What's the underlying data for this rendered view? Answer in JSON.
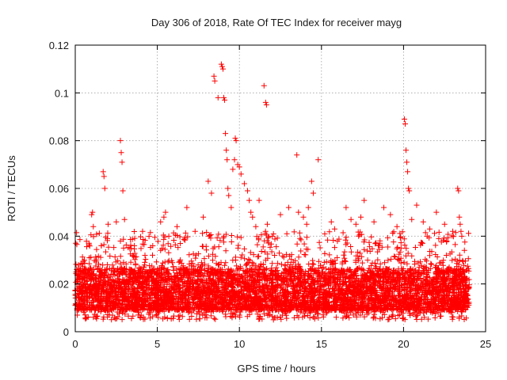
{
  "chart_data": {
    "type": "scatter",
    "title": "Day 306 of 2018, Rate Of TEC Index for receiver mayg",
    "xlabel": "GPS time / hours",
    "ylabel": "ROTI / TECUs",
    "xlim": [
      0,
      25
    ],
    "ylim": [
      0,
      0.12
    ],
    "x_ticks": [
      0,
      5,
      10,
      15,
      20,
      25
    ],
    "y_ticks": [
      0,
      0.02,
      0.04,
      0.06,
      0.08,
      0.1,
      0.12
    ],
    "x_tick_labels": [
      "0",
      "5",
      "10",
      "15",
      "20",
      "25"
    ],
    "y_tick_labels": [
      "0",
      "0.02",
      "0.04",
      "0.06",
      "0.08",
      "0.1",
      "0.12"
    ],
    "grid": true,
    "marker": "plus",
    "color": "#ff0000",
    "x_range_of_data": [
      0,
      24
    ],
    "typical_band": [
      0.005,
      0.03
    ],
    "series": [
      {
        "name": "ROTI",
        "x": [
          0.05,
          0.1,
          0.15,
          1.0,
          1.05,
          1.1,
          1.7,
          1.75,
          1.8,
          2.0,
          2.5,
          2.75,
          2.8,
          2.85,
          2.9,
          2.95,
          3.0,
          3.6,
          4.1,
          5.2,
          5.4,
          5.5,
          5.7,
          6.2,
          6.8,
          7.3,
          7.8,
          8.1,
          8.3,
          8.45,
          8.5,
          8.7,
          8.9,
          8.95,
          9.0,
          9.05,
          9.1,
          9.15,
          9.2,
          9.25,
          9.3,
          9.35,
          9.5,
          9.6,
          9.7,
          9.75,
          9.8,
          9.9,
          10.0,
          10.1,
          10.3,
          10.5,
          10.6,
          10.7,
          10.8,
          11.0,
          11.2,
          11.5,
          11.6,
          11.65,
          11.7,
          12.0,
          12.5,
          13.0,
          13.5,
          13.6,
          13.9,
          14.1,
          14.2,
          14.4,
          14.5,
          14.8,
          15.2,
          15.6,
          15.8,
          16.5,
          16.8,
          17.1,
          17.4,
          17.6,
          18.2,
          18.8,
          19.2,
          19.6,
          20.05,
          20.1,
          20.15,
          20.2,
          20.25,
          20.3,
          20.35,
          20.5,
          20.8,
          21.2,
          21.6,
          22.0,
          22.5,
          23.0,
          23.3,
          23.35,
          23.4,
          23.45,
          23.5,
          23.55
        ],
        "y": [
          0.025,
          0.026,
          0.021,
          0.049,
          0.05,
          0.044,
          0.067,
          0.065,
          0.06,
          0.045,
          0.046,
          0.08,
          0.075,
          0.071,
          0.059,
          0.035,
          0.047,
          0.036,
          0.042,
          0.046,
          0.048,
          0.05,
          0.04,
          0.044,
          0.052,
          0.042,
          0.048,
          0.063,
          0.058,
          0.107,
          0.105,
          0.098,
          0.112,
          0.111,
          0.11,
          0.098,
          0.097,
          0.083,
          0.076,
          0.072,
          0.06,
          0.057,
          0.052,
          0.068,
          0.072,
          0.081,
          0.08,
          0.07,
          0.069,
          0.066,
          0.062,
          0.059,
          0.055,
          0.05,
          0.048,
          0.044,
          0.055,
          0.103,
          0.096,
          0.095,
          0.045,
          0.04,
          0.049,
          0.052,
          0.074,
          0.05,
          0.048,
          0.045,
          0.052,
          0.063,
          0.058,
          0.072,
          0.041,
          0.046,
          0.043,
          0.052,
          0.047,
          0.045,
          0.048,
          0.055,
          0.046,
          0.052,
          0.049,
          0.044,
          0.089,
          0.087,
          0.076,
          0.071,
          0.067,
          0.06,
          0.059,
          0.047,
          0.053,
          0.046,
          0.043,
          0.05,
          0.045,
          0.042,
          0.06,
          0.059,
          0.048,
          0.045,
          0.042,
          0.04
        ]
      }
    ],
    "generated_band_count": 6000
  }
}
